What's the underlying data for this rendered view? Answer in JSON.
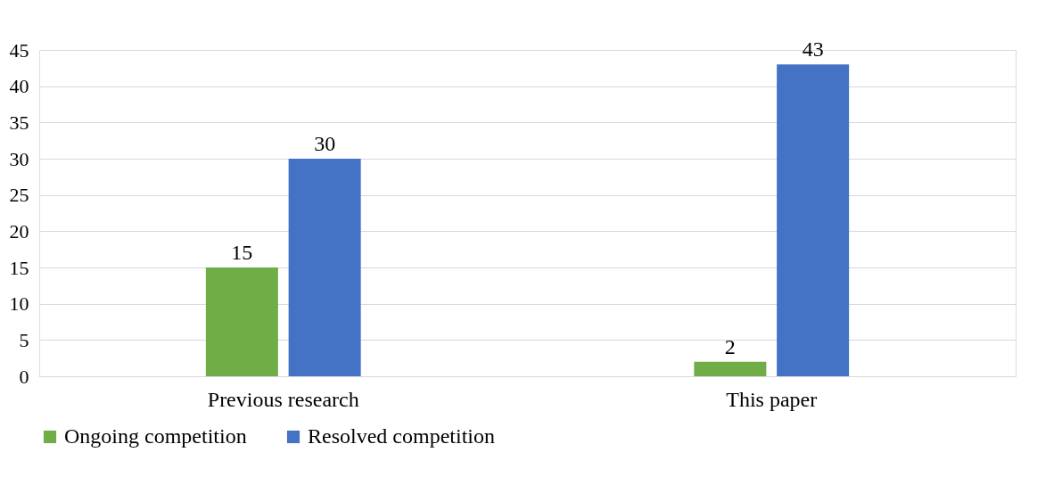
{
  "chart_data": {
    "type": "bar",
    "categories": [
      "Previous research",
      "This paper"
    ],
    "series": [
      {
        "name": "Ongoing competition",
        "color": "#70ad47",
        "values": [
          15,
          2
        ]
      },
      {
        "name": "Resolved competition",
        "color": "#4472c4",
        "values": [
          30,
          43
        ]
      }
    ],
    "ylim": [
      0,
      45
    ],
    "yticks": [
      0,
      5,
      10,
      15,
      20,
      25,
      30,
      35,
      40,
      45
    ],
    "grid": "y",
    "legend": "bottom",
    "data_labels": true
  }
}
